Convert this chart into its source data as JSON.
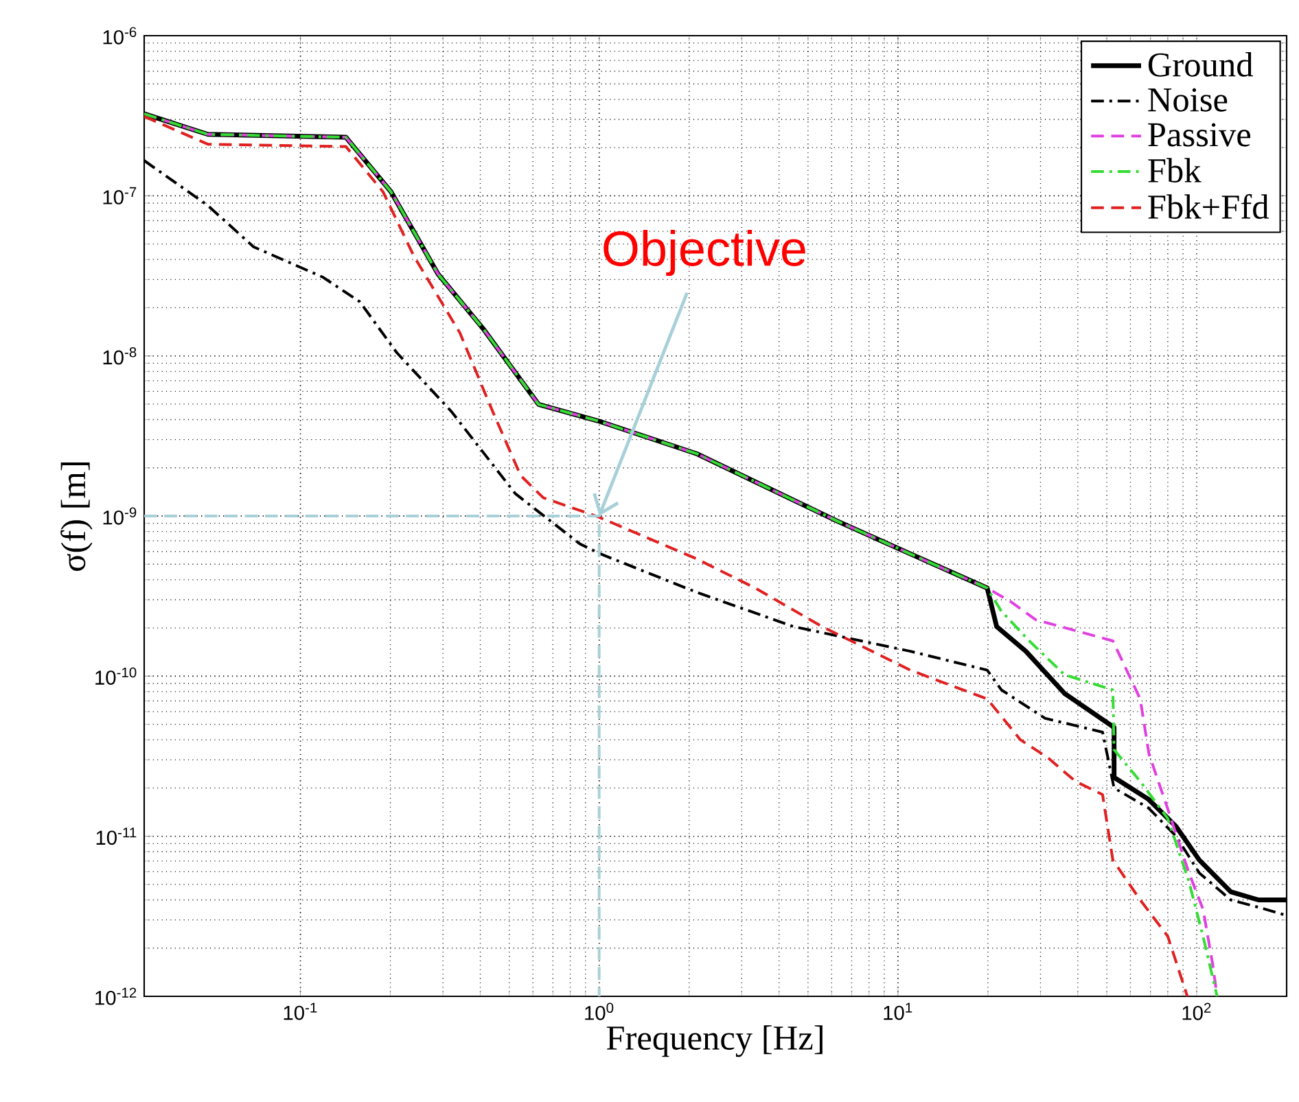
{
  "chart_data": {
    "type": "line",
    "xlabel": "Frequency [Hz]",
    "ylabel": "σ(f) [m]",
    "log": "xy",
    "grid": true,
    "legend": "top right",
    "xlim": [
      0.03,
      200
    ],
    "ylim": [
      1e-12,
      1e-06
    ],
    "xticks": [
      {
        "value": 0.1,
        "label": "10$^{-1}$"
      },
      {
        "value": 1,
        "label": "10$^{0}$"
      },
      {
        "value": 10,
        "label": "10$^{1}$"
      },
      {
        "value": 100,
        "label": "10$^{2}$"
      }
    ],
    "yticks": [
      {
        "value": 1e-12,
        "label": "10$^{-12}$"
      },
      {
        "value": 1e-11,
        "label": "10$^{-11}$"
      },
      {
        "value": 1e-10,
        "label": "10$^{-10}$"
      },
      {
        "value": 1e-09,
        "label": "10$^{-9}$"
      },
      {
        "value": 1e-08,
        "label": "10$^{-8}$"
      },
      {
        "value": 1e-07,
        "label": "10$^{-7}$"
      },
      {
        "value": 1e-06,
        "label": "10$^{-6}$"
      }
    ],
    "annotations": [
      {
        "text": "Objective",
        "x": 1,
        "y": 1e-09
      }
    ],
    "series": [
      {
        "name": "Ground",
        "color": "#000000",
        "line_style": "solid",
        "x": [
          0.03,
          0.049,
          0.142,
          0.201,
          0.289,
          0.41,
          0.627,
          0.99,
          2.12,
          6.26,
          11.0,
          19.9,
          21.4,
          26.8,
          36.1,
          52.9,
          52.9,
          69.0,
          85.3,
          102,
          130,
          161,
          200
        ],
        "values": [
          3.25e-07,
          2.42e-07,
          2.32e-07,
          1.06e-07,
          3.24e-08,
          1.47e-08,
          4.98e-09,
          3.93e-09,
          2.45e-09,
          9.3e-10,
          5.8e-10,
          3.55e-10,
          2.04e-10,
          1.43e-10,
          7.8e-11,
          4.78e-11,
          2.33e-11,
          1.7e-11,
          1.15e-11,
          7.1e-12,
          4.5e-12,
          4e-12,
          4e-12
        ]
      },
      {
        "name": "Noise",
        "color": "#000000",
        "line_style": "dashdot",
        "x": [
          0.03,
          0.049,
          0.0697,
          0.1186,
          0.158,
          0.21,
          0.32,
          0.524,
          0.862,
          1.01,
          2.12,
          4.47,
          11.0,
          19.9,
          22.2,
          31.1,
          48.4,
          52.9,
          69.0,
          85.3,
          102,
          130,
          161,
          200
        ],
        "values": [
          1.66e-07,
          8.7e-08,
          4.8e-08,
          3.11e-08,
          2.18e-08,
          1.05e-08,
          4.5e-09,
          1.38e-09,
          6.7e-10,
          5.8e-10,
          3.34e-10,
          2.04e-10,
          1.43e-10,
          1.09e-10,
          8.2e-11,
          5.45e-11,
          4.47e-11,
          2e-11,
          1.5e-11,
          1e-11,
          5.9e-12,
          4e-12,
          3.6e-12,
          3.2e-12
        ]
      },
      {
        "name": "Passive",
        "color": "#e040e0",
        "line_style": "dashed",
        "x": [
          0.03,
          0.049,
          0.142,
          0.201,
          0.289,
          0.41,
          0.627,
          0.99,
          2.12,
          6.26,
          11.0,
          19.9,
          23.9,
          28.9,
          52.4,
          64.7,
          69.2,
          80.0,
          94.2,
          105,
          113,
          117
        ],
        "values": [
          3.25e-07,
          2.42e-07,
          2.32e-07,
          1.06e-07,
          3.24e-08,
          1.47e-08,
          4.98e-09,
          3.93e-09,
          2.45e-09,
          9.3e-10,
          5.8e-10,
          3.55e-10,
          2.91e-10,
          2.25e-10,
          1.66e-10,
          7.2e-11,
          3.27e-11,
          1.48e-11,
          5.9e-12,
          3.5e-12,
          1.6e-12,
          1e-12
        ]
      },
      {
        "name": "Fbk",
        "color": "#33dd33",
        "line_style": "dashdot",
        "x": [
          0.03,
          0.049,
          0.142,
          0.201,
          0.289,
          0.41,
          0.627,
          0.99,
          2.12,
          6.26,
          11.0,
          19.9,
          22.2,
          27.7,
          36.1,
          52.4,
          52.9,
          64.7,
          80,
          94.2,
          105,
          117
        ],
        "values": [
          3.25e-07,
          2.42e-07,
          2.32e-07,
          1.06e-07,
          3.24e-08,
          1.47e-08,
          4.98e-09,
          3.93e-09,
          2.45e-09,
          9.3e-10,
          5.8e-10,
          3.55e-10,
          2.54e-10,
          1.64e-10,
          1.02e-10,
          8.2e-11,
          3.47e-11,
          2.2e-11,
          1.29e-11,
          5.2e-12,
          2.37e-12,
          1e-12
        ]
      },
      {
        "name": "Fbk+Ffd",
        "color": "#e02020",
        "line_style": "dashed",
        "x": [
          0.03,
          0.049,
          0.142,
          0.189,
          0.24,
          0.342,
          0.44,
          0.546,
          0.65,
          0.99,
          2.12,
          3.33,
          5.57,
          11.0,
          19.9,
          25.7,
          31.7,
          39.3,
          48.4,
          52.4,
          64.7,
          80,
          90,
          93
        ],
        "values": [
          3.13e-07,
          2.1e-07,
          2.03e-07,
          1.06e-07,
          4.19e-08,
          1.39e-08,
          4.5e-09,
          1.79e-09,
          1.3e-09,
          9.9e-10,
          5.4e-10,
          3.55e-10,
          2.04e-10,
          1.09e-10,
          7.2e-11,
          4e-11,
          3.1e-11,
          2.2e-11,
          1.82e-11,
          7.1e-12,
          4e-12,
          2.37e-12,
          1.21e-12,
          1e-12
        ]
      },
      {
        "color": "#a8d0d8",
        "line_style": "dashed",
        "x": [
          0.03,
          1,
          1
        ],
        "values": [
          1e-09,
          1e-09,
          1e-12
        ]
      }
    ]
  }
}
